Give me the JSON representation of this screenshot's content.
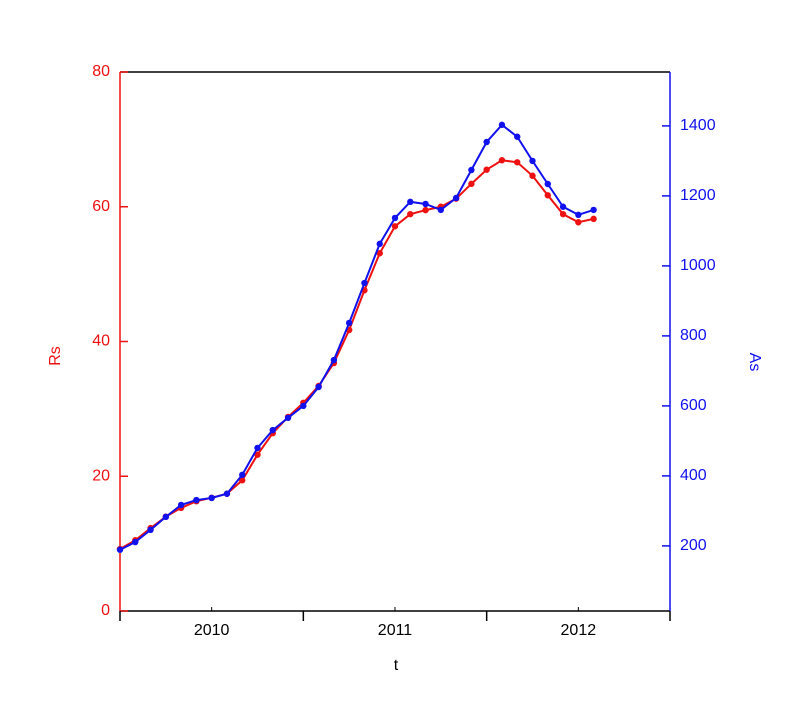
{
  "chart_data": {
    "type": "line",
    "x_label": "t",
    "y_label": "Rs",
    "y2_label": "As",
    "x": [
      0,
      1,
      2,
      3,
      4,
      5,
      6,
      7,
      8,
      9,
      10,
      11,
      12,
      13,
      14,
      15,
      16,
      17,
      18,
      19,
      20,
      21,
      22,
      23,
      24,
      25,
      26,
      27,
      28,
      29,
      30,
      31
    ],
    "xlim": [
      0,
      36
    ],
    "xticks": [
      {
        "value": 6,
        "label": "2010"
      },
      {
        "value": 18,
        "label": "2011"
      },
      {
        "value": 30,
        "label": "2012"
      }
    ],
    "ylim": [
      0,
      80
    ],
    "yticks": [
      0,
      20,
      40,
      60,
      80
    ],
    "y2lim": [
      14,
      1554
    ],
    "y2ticks": [
      200,
      400,
      600,
      800,
      1000,
      1200,
      1400
    ],
    "series": [
      {
        "name": "Rs",
        "color": "#ee1111",
        "values": [
          9.2,
          10.5,
          12.3,
          14.0,
          15.3,
          16.3,
          16.8,
          17.4,
          19.4,
          23.2,
          26.4,
          28.8,
          30.9,
          33.4,
          36.8,
          41.7,
          47.6,
          53.1,
          57.1,
          58.9,
          59.5,
          60.0,
          61.2,
          63.4,
          65.5,
          66.9,
          66.6,
          64.6,
          61.7,
          58.9,
          57.7,
          58.2
        ]
      },
      {
        "name": "As",
        "color": "#1111ee",
        "axis": "y2",
        "values": [
          189,
          211,
          246,
          283,
          317,
          331,
          337,
          349,
          403,
          480,
          531,
          566,
          600,
          654,
          731,
          837,
          951,
          1063,
          1137,
          1183,
          1177,
          1160,
          1194,
          1274,
          1354,
          1403,
          1369,
          1300,
          1234,
          1169,
          1146,
          1160
        ]
      }
    ]
  }
}
